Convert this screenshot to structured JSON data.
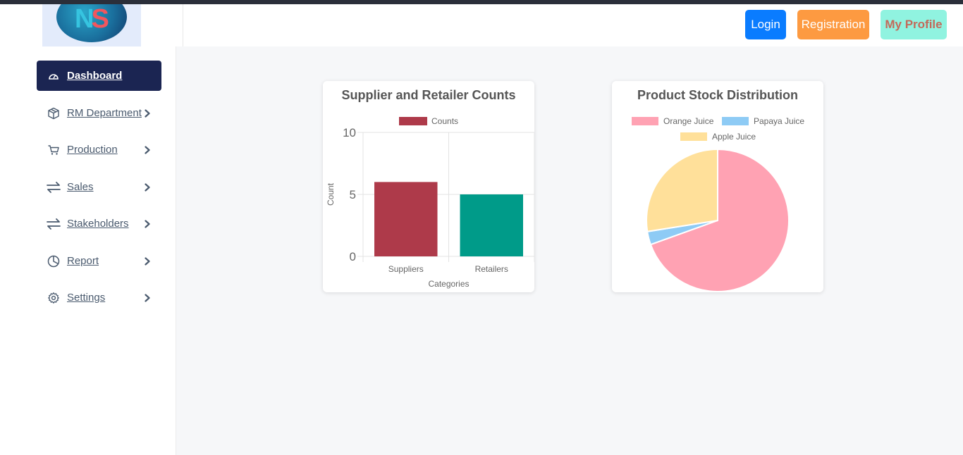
{
  "logo": {
    "letter1": "N",
    "letter2": "S"
  },
  "header": {
    "login_label": "Login",
    "registration_label": "Registration",
    "profile_label": "My Profile"
  },
  "sidebar": {
    "items": [
      {
        "label": "Dashboard",
        "icon": "gauge-icon",
        "active": true
      },
      {
        "label": "RM Department",
        "icon": "box-icon",
        "chevron": true
      },
      {
        "label": "Production",
        "icon": "cart-icon",
        "chevron": true
      },
      {
        "label": "Sales",
        "icon": "arrows-exchange-icon",
        "chevron": true
      },
      {
        "label": "Stakeholders",
        "icon": "arrows-exchange-icon",
        "chevron": true
      },
      {
        "label": "Report",
        "icon": "pie-chart-icon",
        "chevron": true
      },
      {
        "label": "Settings",
        "icon": "gear-icon",
        "chevron": true
      }
    ]
  },
  "colors": {
    "active_nav": "#1b2552",
    "login": "#0a7cff",
    "registration": "#fd9a41",
    "profile": "#90f3e0",
    "suppliers_bar": "#ae3a4a",
    "retailers_bar": "#009b89",
    "orange_juice": "#ffa2b3",
    "papaya_juice": "#8ecbf5",
    "apple_juice": "#ffe09a"
  },
  "chart_data": [
    {
      "type": "bar",
      "title": "Supplier and Retailer Counts",
      "categories": [
        "Suppliers",
        "Retailers"
      ],
      "series": [
        {
          "name": "Counts",
          "values": [
            6,
            5
          ],
          "colors": [
            "#ae3a4a",
            "#009b89"
          ]
        }
      ],
      "xlabel": "Categories",
      "ylabel": "Count",
      "ylim": [
        0,
        10
      ],
      "yticks": [
        0,
        5,
        10
      ],
      "grid": true,
      "legend": "top"
    },
    {
      "type": "pie",
      "title": "Product Stock Distribution",
      "labels": [
        "Orange Juice",
        "Papaya Juice",
        "Apple Juice"
      ],
      "values": [
        69.5,
        3.0,
        27.5
      ],
      "colors": [
        "#ffa2b3",
        "#8ecbf5",
        "#ffe09a"
      ],
      "legend": "top"
    }
  ]
}
